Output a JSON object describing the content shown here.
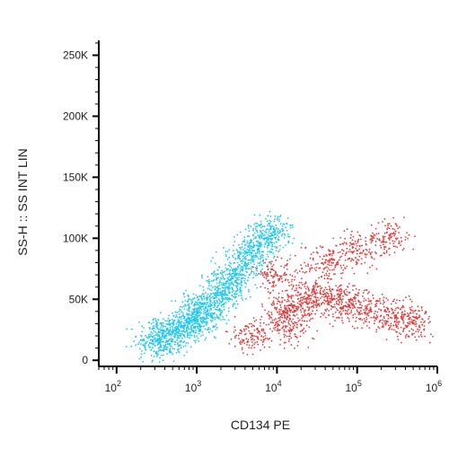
{
  "chart_data": {
    "type": "scatter",
    "xlabel": "CD134 PE",
    "ylabel": "SS-H :: SS INT LIN",
    "x_scale": "log",
    "xlim": [
      60,
      1000000
    ],
    "ylim": [
      -5000,
      262144
    ],
    "grid": false,
    "legend": "none",
    "x_ticks": [
      {
        "value": 100,
        "base": "10",
        "exp": "2"
      },
      {
        "value": 1000,
        "base": "10",
        "exp": "3"
      },
      {
        "value": 10000,
        "base": "10",
        "exp": "4"
      },
      {
        "value": 100000,
        "base": "10",
        "exp": "5"
      },
      {
        "value": 1000000,
        "base": "10",
        "exp": "6"
      }
    ],
    "y_ticks": [
      {
        "value": 0,
        "label": "0"
      },
      {
        "value": 50000,
        "label": "50K"
      },
      {
        "value": 100000,
        "label": "100K"
      },
      {
        "value": 150000,
        "label": "150K"
      },
      {
        "value": 200000,
        "label": "200K"
      },
      {
        "value": 250000,
        "label": "250K"
      }
    ],
    "series": [
      {
        "color": "#1ec8f0",
        "points": [
          [
            300,
            18000
          ],
          [
            500,
            22000
          ],
          [
            800,
            30000
          ],
          [
            1000,
            40000
          ],
          [
            1500,
            45000
          ],
          [
            2000,
            55000
          ],
          [
            3000,
            70000
          ],
          [
            4000,
            80000
          ],
          [
            5000,
            90000
          ],
          [
            7000,
            100000
          ],
          [
            1200,
            35000
          ],
          [
            2500,
            60000
          ],
          [
            600,
            25000
          ],
          [
            350,
            15000
          ],
          [
            9000,
            105000
          ]
        ]
      },
      {
        "color": "#e23c3c",
        "points": [
          [
            12000,
            40000
          ],
          [
            20000,
            45000
          ],
          [
            30000,
            55000
          ],
          [
            50000,
            50000
          ],
          [
            80000,
            45000
          ],
          [
            150000,
            40000
          ],
          [
            300000,
            35000
          ],
          [
            500000,
            30000
          ],
          [
            10000,
            70000
          ],
          [
            40000,
            80000
          ],
          [
            100000,
            90000
          ],
          [
            250000,
            100000
          ],
          [
            5000,
            20000
          ],
          [
            15000,
            25000
          ]
        ]
      }
    ]
  }
}
